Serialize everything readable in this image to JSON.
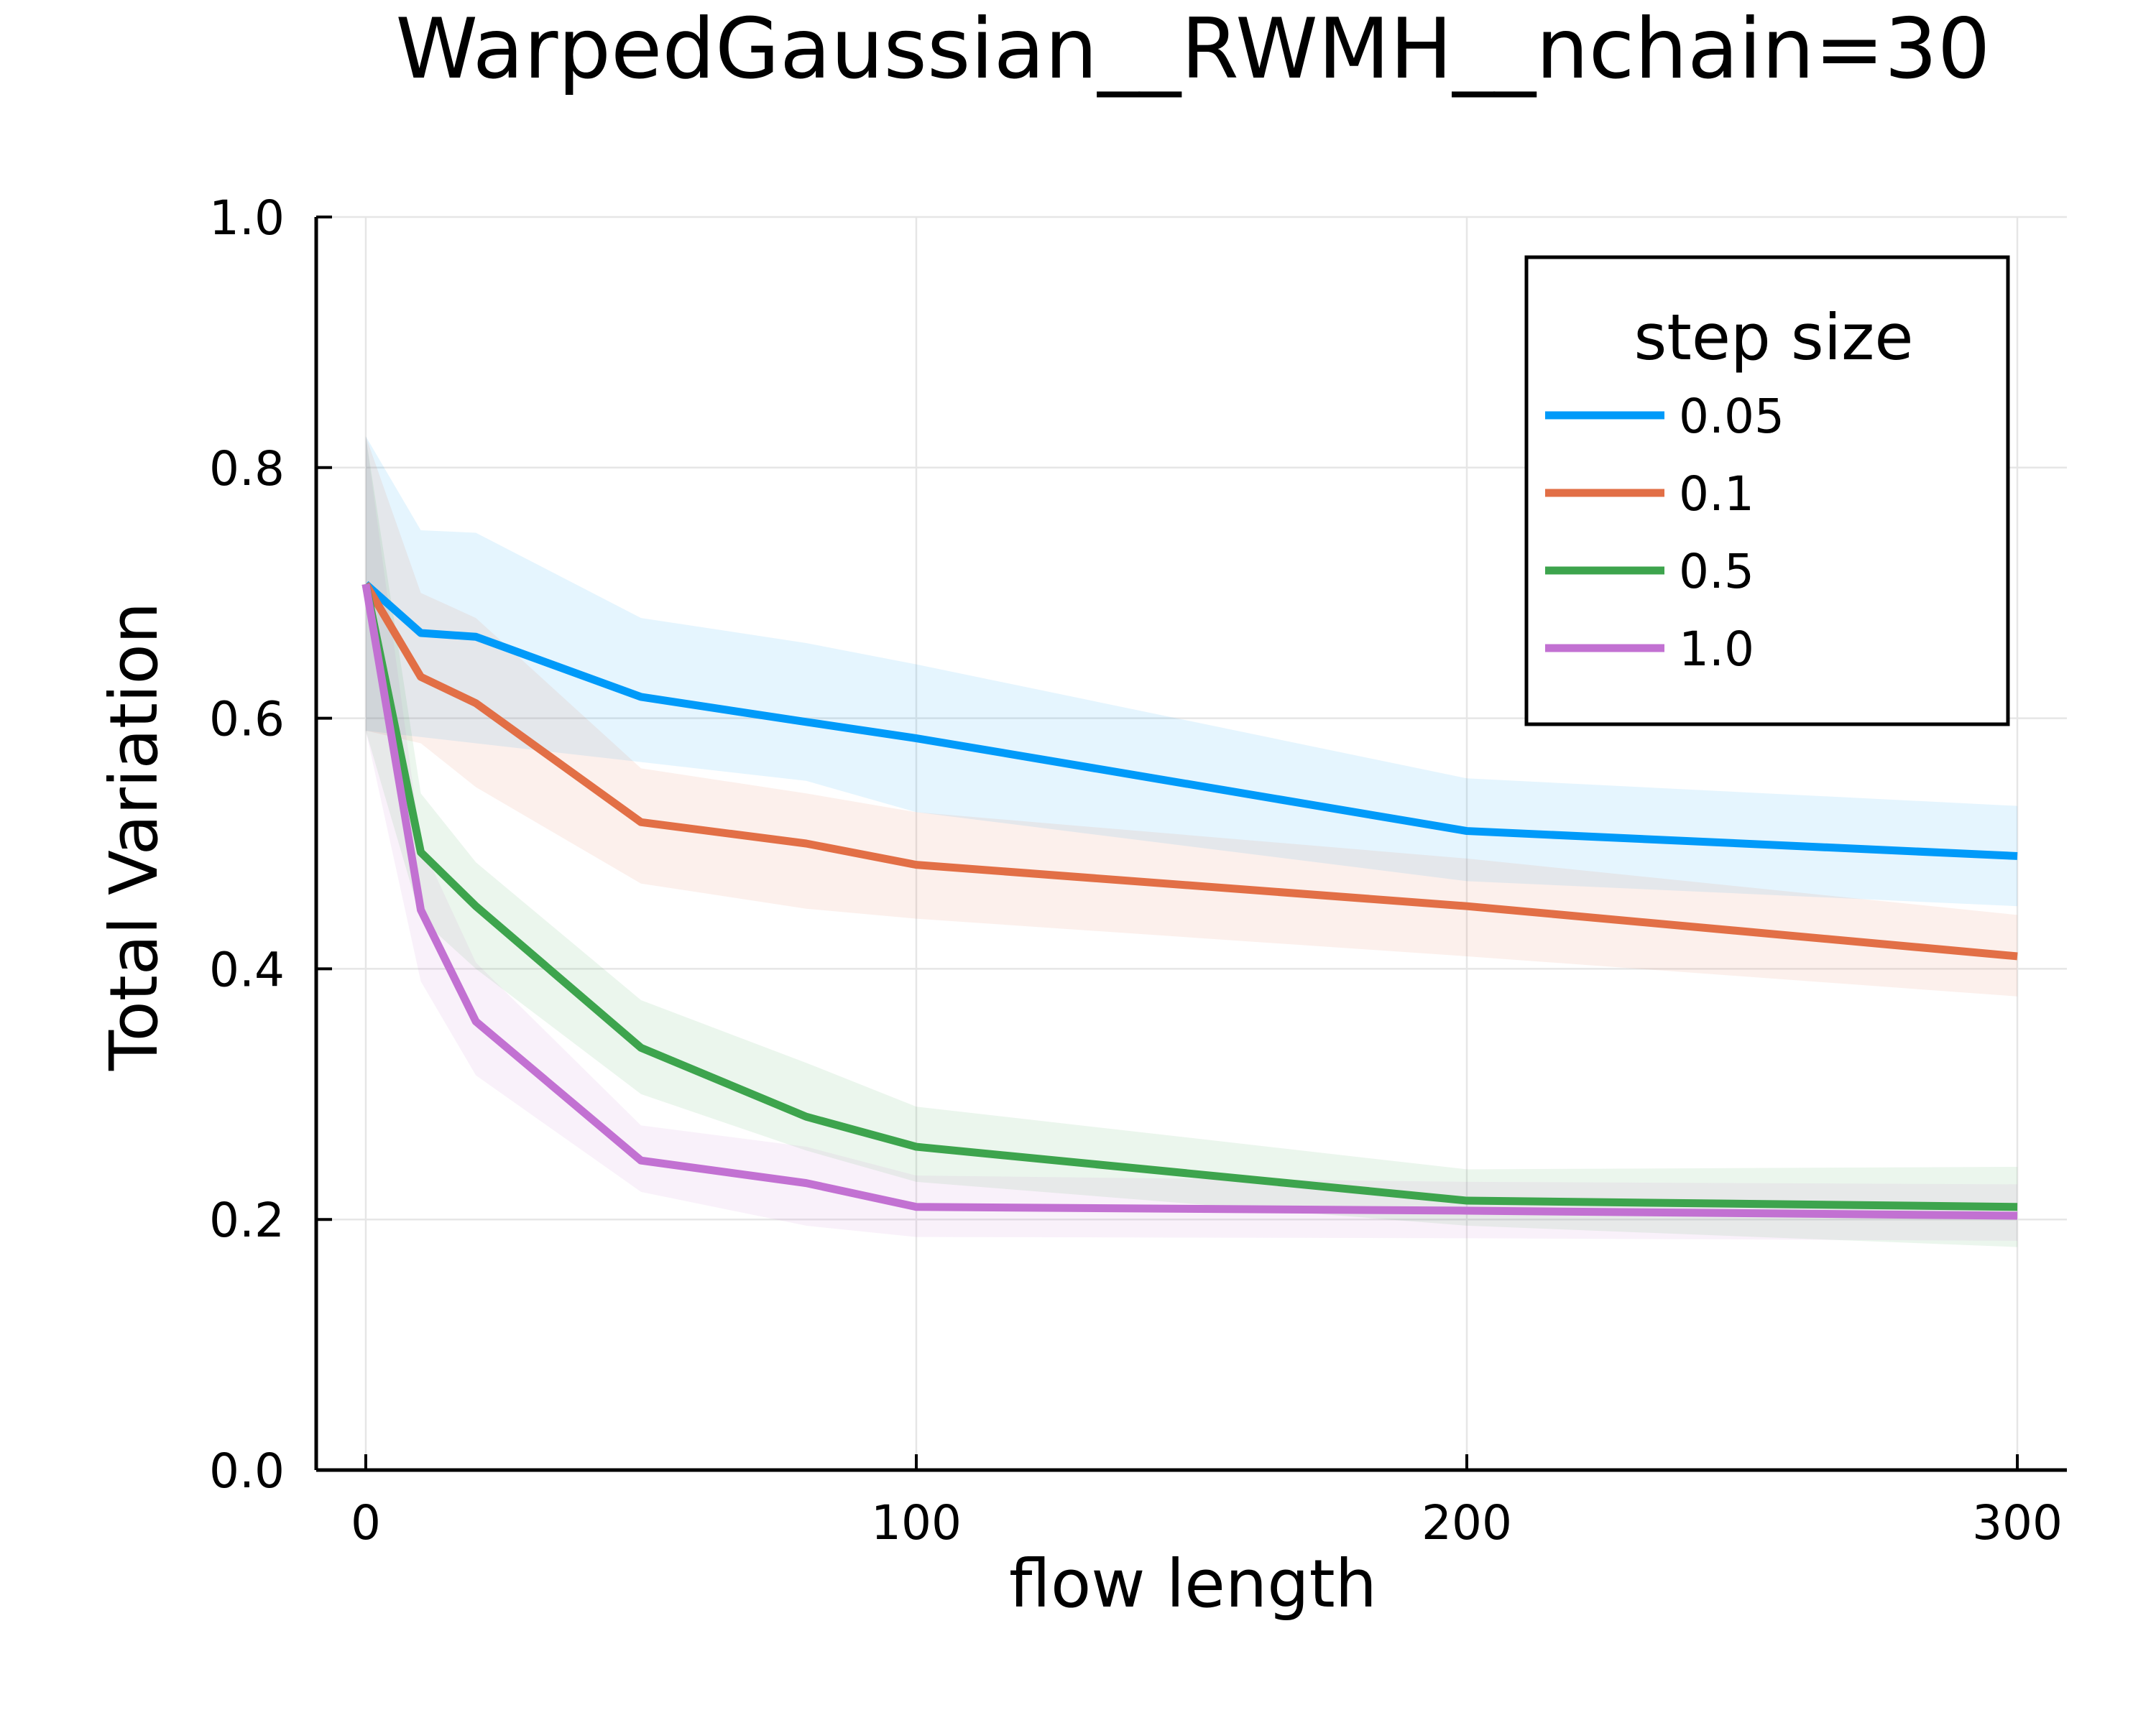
{
  "chart_data": {
    "type": "line",
    "title": "WarpedGaussian__RWMH__nchain=30",
    "xlabel": "flow length",
    "ylabel": "Total Variation",
    "xlim": [
      -9,
      309
    ],
    "ylim": [
      0,
      1
    ],
    "xticks": [
      0,
      100,
      200,
      300
    ],
    "xtick_labels": [
      "0",
      "100",
      "200",
      "300"
    ],
    "yticks": [
      0,
      0.2,
      0.4,
      0.6,
      0.8,
      1.0
    ],
    "ytick_labels": [
      "0.0",
      "0.2",
      "0.4",
      "0.6",
      "0.8",
      "1.0"
    ],
    "grid": true,
    "legend": {
      "title": "step size",
      "placement": "top-right"
    },
    "x": [
      0,
      10,
      20,
      50,
      80,
      100,
      200,
      300
    ],
    "series": [
      {
        "name": "0.05",
        "color": "#009af9",
        "values": [
          0.707,
          0.668,
          0.665,
          0.617,
          0.597,
          0.584,
          0.51,
          0.49
        ],
        "lower": [
          0.59,
          0.585,
          0.58,
          0.565,
          0.55,
          0.525,
          0.47,
          0.45
        ],
        "upper": [
          0.825,
          0.75,
          0.748,
          0.68,
          0.66,
          0.643,
          0.552,
          0.53
        ]
      },
      {
        "name": "0.1",
        "color": "#e26f46",
        "values": [
          0.707,
          0.633,
          0.612,
          0.517,
          0.5,
          0.483,
          0.45,
          0.41
        ],
        "lower": [
          0.59,
          0.58,
          0.545,
          0.468,
          0.448,
          0.44,
          0.41,
          0.378
        ],
        "upper": [
          0.825,
          0.7,
          0.68,
          0.56,
          0.54,
          0.525,
          0.488,
          0.443
        ]
      },
      {
        "name": "0.5",
        "color": "#3da44d",
        "values": [
          0.707,
          0.493,
          0.45,
          0.337,
          0.282,
          0.258,
          0.215,
          0.21
        ],
        "lower": [
          0.59,
          0.44,
          0.4,
          0.3,
          0.255,
          0.23,
          0.195,
          0.178
        ],
        "upper": [
          0.825,
          0.54,
          0.485,
          0.375,
          0.325,
          0.29,
          0.24,
          0.242
        ]
      },
      {
        "name": "1.0",
        "color": "#c271d2",
        "values": [
          0.707,
          0.447,
          0.358,
          0.247,
          0.229,
          0.21,
          0.207,
          0.203
        ],
        "lower": [
          0.59,
          0.39,
          0.315,
          0.222,
          0.195,
          0.186,
          0.185,
          0.183
        ],
        "upper": [
          0.825,
          0.5,
          0.405,
          0.275,
          0.258,
          0.235,
          0.23,
          0.228
        ]
      }
    ]
  }
}
